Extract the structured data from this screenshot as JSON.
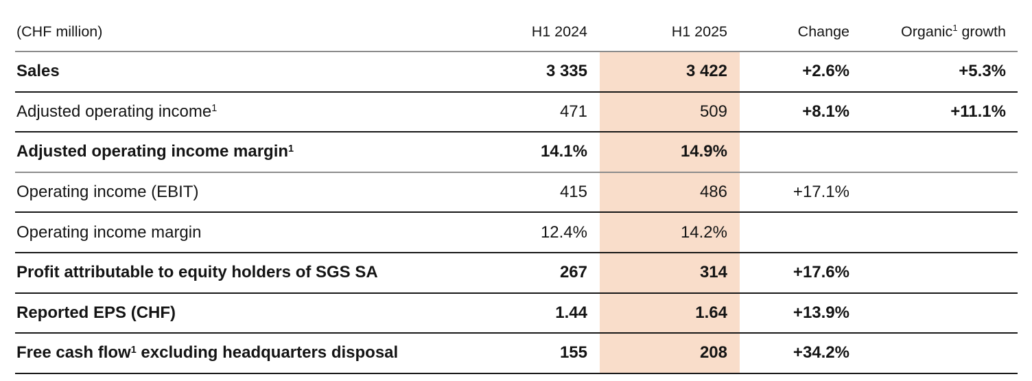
{
  "table": {
    "unit_label": "(CHF million)",
    "columns": {
      "h1_2024": "H1 2024",
      "h1_2025": "H1 2025",
      "change": "Change",
      "organic_pre": "Organic",
      "organic_sup": "1",
      "organic_post": " growth"
    },
    "highlight_color": "#f9ddca",
    "rows": [
      {
        "pre": "Sales",
        "sup": "",
        "post": "",
        "h1_2024": "3 335",
        "h1_2025": "3 422",
        "change": "+2.6%",
        "organic": "+5.3%"
      },
      {
        "pre": "Adjusted operating income",
        "sup": "1",
        "post": "",
        "h1_2024": "471",
        "h1_2025": "509",
        "change": "+8.1%",
        "organic": "+11.1%"
      },
      {
        "pre": "Adjusted operating income margin",
        "sup": "1",
        "post": "",
        "h1_2024": "14.1%",
        "h1_2025": "14.9%",
        "change": "",
        "organic": ""
      },
      {
        "pre": "Operating income (EBIT)",
        "sup": "",
        "post": "",
        "h1_2024": "415",
        "h1_2025": "486",
        "change": "+17.1%",
        "organic": ""
      },
      {
        "pre": "Operating income margin",
        "sup": "",
        "post": "",
        "h1_2024": "12.4%",
        "h1_2025": "14.2%",
        "change": "",
        "organic": ""
      },
      {
        "pre": "Profit attributable to equity holders of SGS SA",
        "sup": "",
        "post": "",
        "h1_2024": "267",
        "h1_2025": "314",
        "change": "+17.6%",
        "organic": ""
      },
      {
        "pre": "Reported EPS (CHF)",
        "sup": "",
        "post": "",
        "h1_2024": "1.44",
        "h1_2025": "1.64",
        "change": "+13.9%",
        "organic": ""
      },
      {
        "pre": "Free cash flow",
        "sup": "1",
        "post": " excluding headquarters disposal",
        "h1_2024": "155",
        "h1_2025": "208",
        "change": "+34.2%",
        "organic": ""
      }
    ]
  }
}
